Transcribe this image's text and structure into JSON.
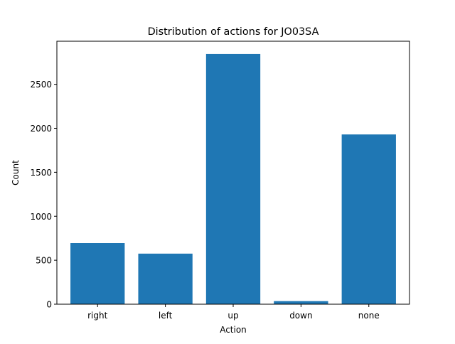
{
  "chart_data": {
    "type": "bar",
    "title": "Distribution of actions for JO03SA",
    "xlabel": "Action",
    "ylabel": "Count",
    "categories": [
      "right",
      "left",
      "up",
      "down",
      "none"
    ],
    "values": [
      695,
      575,
      2845,
      35,
      1930
    ],
    "ylim": [
      0,
      2990
    ],
    "yticks": [
      0,
      500,
      1000,
      1500,
      2000,
      2500
    ],
    "grid": false,
    "legend": "none",
    "bar_color": "#1f77b4"
  }
}
